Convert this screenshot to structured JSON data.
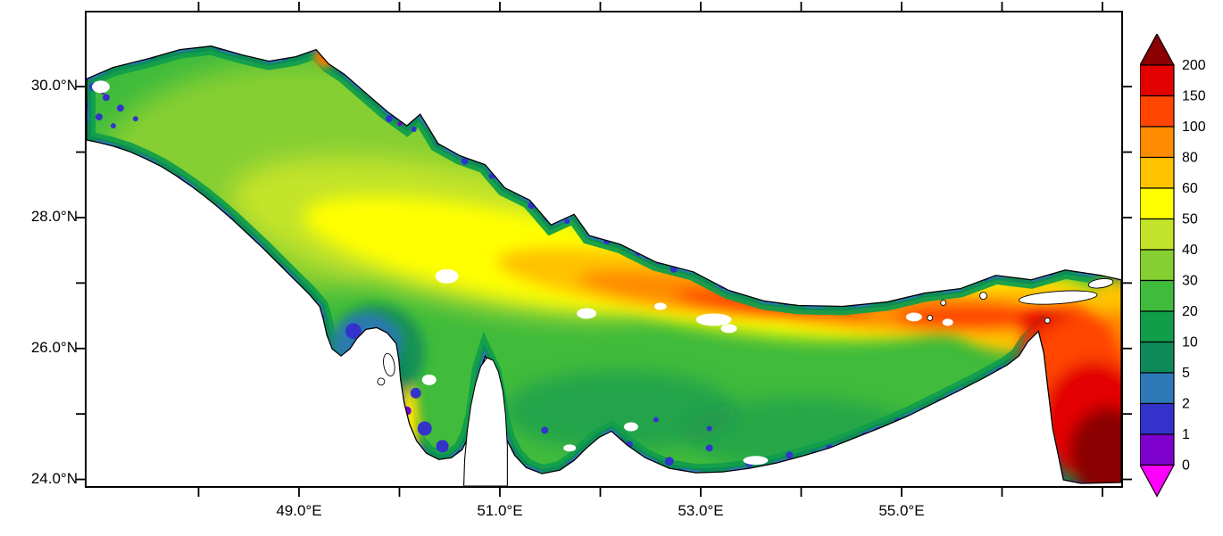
{
  "figure": {
    "title": "",
    "background": "#ffffff",
    "frame_color": "#000000"
  },
  "axes": {
    "x": {
      "ticks": [
        {
          "lon": 49,
          "label": "49.0°E"
        },
        {
          "lon": 51,
          "label": "51.0°E"
        },
        {
          "lon": 53,
          "label": "53.0°E"
        },
        {
          "lon": 55,
          "label": "55.0°E"
        }
      ],
      "minor_tick_lons": [
        48,
        49,
        50,
        51,
        52,
        53,
        54,
        55,
        56,
        57
      ],
      "range_lon": [
        46.87,
        57.21
      ]
    },
    "y": {
      "ticks": [
        {
          "lat": 30,
          "label": "30.0°N"
        },
        {
          "lat": 28,
          "label": "28.0°N"
        },
        {
          "lat": 26,
          "label": "26.0°N"
        },
        {
          "lat": 24,
          "label": "24.0°N"
        }
      ],
      "minor_tick_lats": [
        24,
        25,
        26,
        27,
        28,
        29,
        30
      ],
      "range_lat": [
        23.87,
        31.16
      ]
    }
  },
  "colorbar": {
    "orientation": "vertical",
    "arrow_ends": true,
    "levels": [
      0,
      1,
      2,
      5,
      10,
      20,
      30,
      40,
      50,
      60,
      80,
      100,
      150,
      200
    ],
    "labels": [
      "0",
      "1",
      "2",
      "5",
      "10",
      "20",
      "30",
      "40",
      "50",
      "60",
      "80",
      "100",
      "150",
      "200"
    ],
    "colors": [
      "#ff00ff",
      "#7d00cc",
      "#3333cc",
      "#2e7ab8",
      "#0e8a5a",
      "#119e4b",
      "#40bb3c",
      "#85cf33",
      "#c4e42c",
      "#ffff00",
      "#ffc300",
      "#ff8c00",
      "#ff4500",
      "#e30000",
      "#8b0000"
    ]
  },
  "chart_data": {
    "type": "heatmap",
    "title": "",
    "xlabel": "",
    "ylabel": "",
    "region": "Persian Gulf, Strait of Hormuz and northwestern Gulf of Oman",
    "x_range_lon_east": [
      46.87,
      57.21
    ],
    "y_range_lat_north": [
      23.87,
      31.16
    ],
    "value_levels": [
      0,
      1,
      2,
      5,
      10,
      20,
      30,
      40,
      50,
      60,
      80,
      100,
      150,
      200
    ],
    "land_color": "#ffffff",
    "regions": [
      {
        "area": "northwest basin (48-50.5E, 28.5-30.2N)",
        "approx_value_range": [
          20,
          50
        ]
      },
      {
        "area": "central axial band (50-54E, 26-28.5N)",
        "approx_value_range": [
          50,
          100
        ]
      },
      {
        "area": "deep band approaching Strait of Hormuz (53.5-55.5E, ~26.3N)",
        "approx_value_range": [
          100,
          150
        ]
      },
      {
        "area": "Strait of Hormuz (55.5-56.5E, 26-27N)",
        "approx_value_range": [
          100,
          200
        ]
      },
      {
        "area": "Gulf of Oman, southeast corner (56.5-57.2E, 24-25.5N)",
        "approx_value_range": [
          200,
          250
        ],
        "note": "exceeds top colorbar level 200"
      },
      {
        "area": "coastal margins and around islands",
        "approx_value_range": [
          0,
          10
        ]
      },
      {
        "area": "Gulf of Salwa / Bahrain bay west of Qatar",
        "approx_value_range": [
          1,
          80
        ]
      },
      {
        "area": "southern shelf along UAE coast (52-55.5E, 24-25.5N)",
        "approx_value_range": [
          5,
          30
        ]
      },
      {
        "area": "small patch on northern coast near 50.3E 30.4N",
        "approx_value_range": [
          80,
          150
        ]
      }
    ],
    "legend_position": "right",
    "grid": false
  }
}
